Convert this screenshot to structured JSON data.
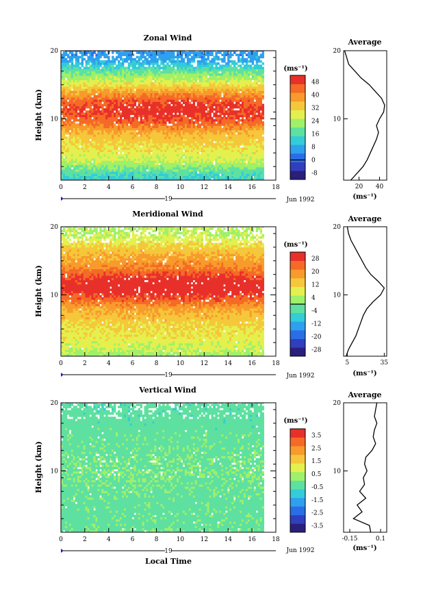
{
  "figure": {
    "bottom_xlabel": "Local Time",
    "date_day": "19",
    "date_month": "Jun 1992"
  },
  "chart_data": [
    {
      "type": "heatmap",
      "title": "Zonal Wind",
      "ylabel": "Height (km)",
      "xlim": [
        0,
        18
      ],
      "ylim": [
        1,
        20
      ],
      "xticks": [
        0,
        2,
        4,
        6,
        8,
        10,
        12,
        14,
        16,
        18
      ],
      "yticks": [
        10,
        20
      ],
      "data_x_range": [
        0,
        17
      ],
      "colorbar": {
        "unit": "(ms⁻¹)",
        "ticks": [
          48,
          40,
          32,
          24,
          16,
          8,
          0,
          -8
        ],
        "range": [
          -12,
          52
        ],
        "zero_line": 0,
        "colors": [
          "#2a1f7a",
          "#2f3fbe",
          "#2a6ee6",
          "#2fa0ee",
          "#33ccd8",
          "#5ee0a0",
          "#9ff06a",
          "#e4f04e",
          "#f5c73a",
          "#f89a2c",
          "#f56a26",
          "#e8302a"
        ]
      },
      "field": {
        "profile_heights": [
          1,
          2,
          4,
          6,
          8,
          9.5,
          11,
          12.5,
          14,
          15.5,
          17,
          18.5,
          19.5
        ],
        "profile_values": [
          12,
          16,
          26,
          30,
          34,
          42,
          46,
          44,
          36,
          26,
          18,
          8,
          6
        ],
        "time_trend": 4,
        "noise_amplitude": 3
      },
      "average": {
        "title": "Average",
        "xlabel": "(ms⁻¹)",
        "xlim": [
          5,
          47
        ],
        "xticks": [
          20,
          40
        ],
        "heights": [
          1,
          2,
          3,
          4,
          5,
          6,
          7,
          8,
          9,
          10,
          11,
          12,
          13,
          14,
          15,
          16,
          17,
          18,
          19,
          20
        ],
        "values": [
          12,
          18,
          24,
          28,
          31,
          34,
          37,
          39,
          37,
          40,
          44,
          45,
          42,
          36,
          30,
          22,
          16,
          10,
          8,
          6
        ]
      }
    },
    {
      "type": "heatmap",
      "title": "Meridional Wind",
      "ylabel": "Height (km)",
      "xlim": [
        0,
        18
      ],
      "ylim": [
        1,
        20
      ],
      "xticks": [
        0,
        2,
        4,
        6,
        8,
        10,
        12,
        14,
        16,
        18
      ],
      "yticks": [
        10,
        20
      ],
      "data_x_range": [
        0,
        17
      ],
      "colorbar": {
        "unit": "(ms⁻¹)",
        "ticks": [
          28,
          20,
          12,
          4,
          -4,
          -12,
          -20,
          -28
        ],
        "range": [
          -32,
          32
        ],
        "zero_line": 0,
        "colors": [
          "#2a1f7a",
          "#2f3fbe",
          "#2a6ee6",
          "#2fa0ee",
          "#33ccd8",
          "#5ee0a0",
          "#9ff06a",
          "#e4f04e",
          "#f5c73a",
          "#f89a2c",
          "#f56a26",
          "#e8302a"
        ]
      },
      "field": {
        "profile_heights": [
          1,
          2,
          4,
          6,
          8,
          9.5,
          11,
          12.5,
          14,
          15.5,
          17,
          18.5,
          19.5
        ],
        "profile_values": [
          2,
          6,
          9,
          12,
          16,
          24,
          30,
          27,
          20,
          16,
          12,
          6,
          4
        ],
        "time_trend": 3,
        "noise_amplitude": 3
      },
      "average": {
        "title": "Average",
        "xlabel": "(ms⁻¹)",
        "xlim": [
          2,
          37
        ],
        "xticks": [
          5,
          35
        ],
        "heights": [
          1,
          2,
          3,
          4,
          5,
          6,
          7,
          8,
          9,
          10,
          11,
          12,
          13,
          14,
          15,
          16,
          17,
          18,
          19,
          20
        ],
        "values": [
          4,
          6,
          9,
          12,
          14,
          16,
          18,
          21,
          26,
          32,
          35,
          30,
          24,
          20,
          17,
          14,
          11,
          8,
          6,
          5
        ]
      }
    },
    {
      "type": "heatmap",
      "title": "Vertical Wind",
      "ylabel": "Height (km)",
      "xlabel": "Local Time",
      "xlim": [
        0,
        18
      ],
      "ylim": [
        1,
        20
      ],
      "xticks": [
        0,
        2,
        4,
        6,
        8,
        10,
        12,
        14,
        16,
        18
      ],
      "yticks": [
        10,
        20
      ],
      "data_x_range": [
        0,
        17
      ],
      "colorbar": {
        "unit": "(ms⁻¹)",
        "ticks": [
          3.5,
          2.5,
          1.5,
          0.5,
          -0.5,
          -1.5,
          -2.5,
          -3.5
        ],
        "range": [
          -4,
          4
        ],
        "zero_line": null,
        "colors": [
          "#2a1f7a",
          "#2f3fbe",
          "#2a6ee6",
          "#2fa0ee",
          "#33ccd8",
          "#5ee0a0",
          "#9ff06a",
          "#e4f04e",
          "#f5c73a",
          "#f89a2c",
          "#f56a26",
          "#e8302a"
        ]
      },
      "field": {
        "profile_heights": [
          1,
          5,
          10,
          15,
          20
        ],
        "profile_values": [
          -0.2,
          -0.3,
          -0.1,
          -0.3,
          -0.4
        ],
        "time_trend": 0,
        "noise_amplitude": 0.35
      },
      "average": {
        "title": "Average",
        "xlabel": "(ms⁻¹)",
        "xlim": [
          -0.2,
          0.15
        ],
        "xticks": [
          -0.15,
          0.1
        ],
        "heights": [
          1,
          2,
          3,
          4,
          5,
          6,
          7,
          8,
          9,
          10,
          11,
          12,
          13,
          14,
          15,
          16,
          17,
          18,
          19,
          20
        ],
        "values": [
          0.02,
          0.01,
          -0.12,
          -0.05,
          -0.09,
          -0.02,
          -0.07,
          -0.03,
          -0.04,
          -0.01,
          -0.03,
          -0.02,
          0.03,
          0.06,
          0.04,
          0.05,
          0.07,
          0.05,
          0.06,
          0.07
        ]
      }
    }
  ]
}
